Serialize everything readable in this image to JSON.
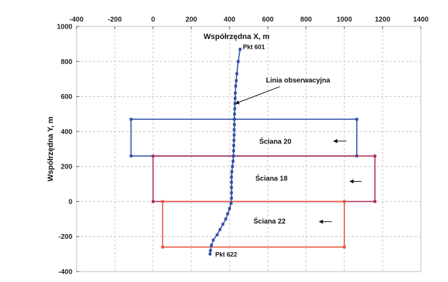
{
  "chart_data": {
    "type": "line",
    "title": "",
    "x_axis": {
      "label": "Współrzędna X,  m",
      "min": -400,
      "max": 1400,
      "ticks": [
        -400,
        -200,
        0,
        200,
        400,
        600,
        800,
        1000,
        1200,
        1400
      ],
      "position": "top"
    },
    "y_axis": {
      "label": "Współrzędna Y,  m",
      "min": -400,
      "max": 1000,
      "ticks": [
        -400,
        -200,
        0,
        200,
        400,
        600,
        800,
        1000
      ]
    },
    "grid": "dashed",
    "series": [
      {
        "name": "Linia obserwacyjna",
        "color": "#2e4fa6",
        "marker": "square",
        "points": [
          [
            455,
            870
          ],
          [
            445,
            800
          ],
          [
            438,
            730
          ],
          [
            435,
            690
          ],
          [
            432,
            660
          ],
          [
            430,
            620
          ],
          [
            429,
            590
          ],
          [
            428,
            560
          ],
          [
            427,
            530
          ],
          [
            426,
            500
          ],
          [
            425,
            470
          ],
          [
            425,
            440
          ],
          [
            424,
            410
          ],
          [
            424,
            380
          ],
          [
            423,
            350
          ],
          [
            422,
            320
          ],
          [
            421,
            290
          ],
          [
            420,
            260
          ],
          [
            418,
            230
          ],
          [
            415,
            200
          ],
          [
            412,
            170
          ],
          [
            410,
            140
          ],
          [
            410,
            110
          ],
          [
            410,
            80
          ],
          [
            410,
            50
          ],
          [
            410,
            20
          ],
          [
            408,
            -10
          ],
          [
            400,
            -40
          ],
          [
            390,
            -70
          ],
          [
            380,
            -100
          ],
          [
            365,
            -130
          ],
          [
            350,
            -160
          ],
          [
            335,
            -190
          ],
          [
            315,
            -220
          ],
          [
            305,
            -250
          ],
          [
            300,
            -280
          ],
          [
            298,
            -300
          ]
        ]
      }
    ],
    "walls": [
      {
        "name": "Ściana 20",
        "x1": -115,
        "x2": 1065,
        "y1": 260,
        "y2": 470,
        "color": "#2e4fa6"
      },
      {
        "name": "Ściana 18",
        "x1": 0,
        "x2": 1160,
        "y1": 0,
        "y2": 260,
        "color": "#b0305a"
      },
      {
        "name": "Ściana 22",
        "x1": 50,
        "x2": 1000,
        "y1": -260,
        "y2": 0,
        "color": "#e8543a"
      }
    ],
    "annotations": [
      {
        "id": "start",
        "text": "Pkt 601",
        "x": 470,
        "y": 870
      },
      {
        "id": "end",
        "text": "Pkt 622",
        "x": 325,
        "y": -315
      },
      {
        "id": "line",
        "text": "Linia obserwacyjna",
        "x": 590,
        "y": 680,
        "arrow_to": [
          432,
          560
        ]
      },
      {
        "id": "wall20",
        "text": "Ściana 20",
        "x": 555,
        "y": 330,
        "arrow_from": [
          1010,
          345
        ],
        "arrow_to": [
          945,
          345
        ]
      },
      {
        "id": "wall18",
        "text": "Ściana 18",
        "x": 535,
        "y": 120,
        "arrow_from": [
          1090,
          115
        ],
        "arrow_to": [
          1030,
          115
        ]
      },
      {
        "id": "wall22",
        "text": "Ściana 22",
        "x": 525,
        "y": -125,
        "arrow_from": [
          935,
          -115
        ],
        "arrow_to": [
          870,
          -115
        ]
      }
    ]
  }
}
